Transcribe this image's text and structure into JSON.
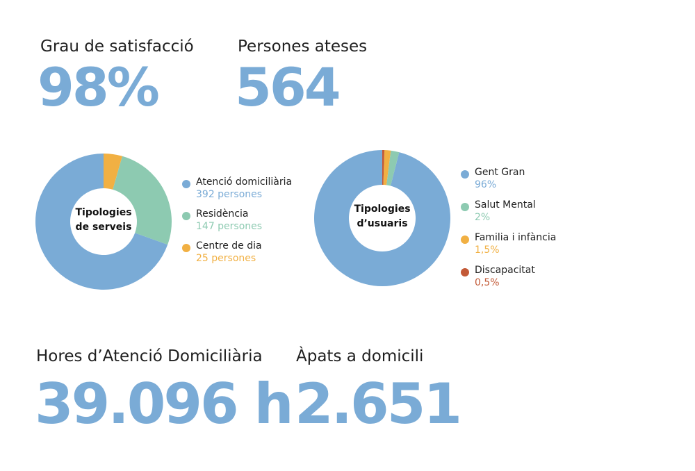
{
  "stats": {
    "satisfaction": {
      "label": "Grau de satisfacció",
      "value": "98%"
    },
    "persons": {
      "label": "Persones ateses",
      "value": "564"
    },
    "hours": {
      "label": "Hores d’Atenció Domiciliària",
      "value": "39.096 h"
    },
    "meals": {
      "label": "Àpats a domicili",
      "value": "2.651"
    }
  },
  "chart_data": [
    {
      "type": "pie",
      "center_label": [
        "Tipologies",
        "de serveis"
      ],
      "legend_position": "right",
      "categories": [
        "Atenció domiciliària",
        "Residència",
        "Centre de dia"
      ],
      "values": [
        392,
        147,
        25
      ],
      "value_labels": [
        "392 persones",
        "147 persones",
        "25 persones"
      ],
      "colors": [
        "#7aabd6",
        "#8dcab1",
        "#f1b043"
      ]
    },
    {
      "type": "pie",
      "center_label": [
        "Tipologies",
        "d’usuaris"
      ],
      "legend_position": "right",
      "categories": [
        "Gent Gran",
        "Salut Mental",
        "Familia i infància",
        "Discapacitat"
      ],
      "values": [
        96,
        2,
        1.5,
        0.5
      ],
      "value_labels": [
        "96%",
        "2%",
        "1,5%",
        "0,5%"
      ],
      "colors": [
        "#7aabd6",
        "#8dcab1",
        "#f1b043",
        "#c35a37"
      ]
    }
  ]
}
